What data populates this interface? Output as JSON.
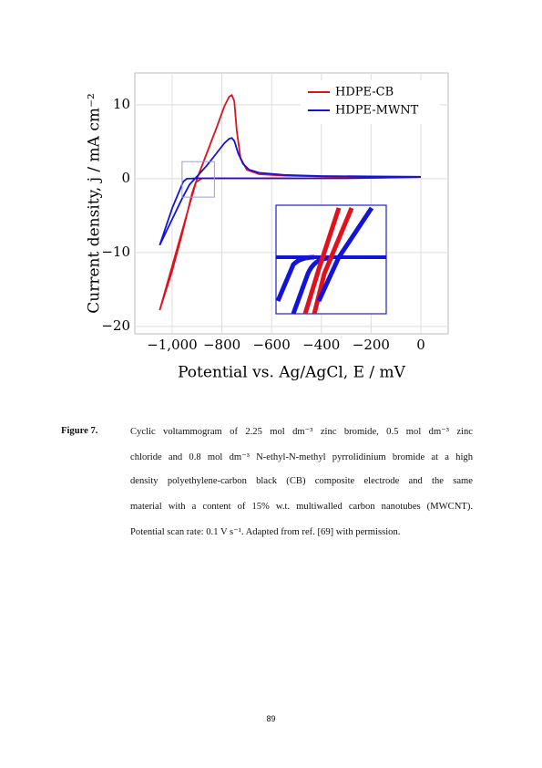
{
  "chart_data": {
    "type": "line",
    "xlabel": "Potential vs. Ag/AgCl, E / mV",
    "ylabel": "Current density, j / mA cm⁻²",
    "xlim": [
      -1150,
      110
    ],
    "ylim": [
      -21,
      14.3
    ],
    "xticks": [
      {
        "value": -1000,
        "label": "−1,000"
      },
      {
        "value": -800,
        "label": "−800"
      },
      {
        "value": -600,
        "label": "−600"
      },
      {
        "value": -400,
        "label": "−400"
      },
      {
        "value": -200,
        "label": "−200"
      },
      0
    ],
    "yticks": [
      {
        "value": -20,
        "label": "−20"
      },
      {
        "value": -10,
        "label": "−10"
      },
      0,
      10
    ],
    "grid": true,
    "legend": "upper right",
    "series": [
      {
        "name": "HDPE-CB",
        "color": "#e0101c",
        "x": [
          -1050,
          -980,
          -930,
          -900,
          -860,
          -820,
          -790,
          -770,
          -760,
          -750,
          -740,
          -725,
          -700,
          -650,
          -550,
          -400,
          -200,
          0,
          -200,
          -500,
          -800,
          -880,
          -905,
          -920,
          -960,
          -1000,
          -1050
        ],
        "values": [
          -17.8,
          -9.5,
          -3.5,
          0,
          3.5,
          7,
          9.8,
          11.1,
          11.3,
          10.5,
          6.5,
          2.8,
          1.2,
          0.6,
          0.4,
          0.3,
          0.25,
          0.2,
          0.1,
          0.05,
          0.05,
          0.05,
          -0.5,
          -2,
          -7.5,
          -12.5,
          -17.8
        ]
      },
      {
        "name": "HDPE-MWNT",
        "color": "#1414d8",
        "x": [
          -1050,
          -1000,
          -960,
          -930,
          -900,
          -860,
          -820,
          -790,
          -770,
          -760,
          -750,
          -735,
          -715,
          -690,
          -650,
          -550,
          -400,
          -200,
          0,
          -300,
          -600,
          -900,
          -940,
          -955,
          -1000,
          -1050
        ],
        "values": [
          -9,
          -5.5,
          -2.7,
          -0.8,
          0.3,
          1.8,
          3.5,
          4.8,
          5.4,
          5.5,
          5.1,
          3.5,
          2,
          1.2,
          0.8,
          0.5,
          0.35,
          0.3,
          0.25,
          0.05,
          0.05,
          0.05,
          0,
          -0.4,
          -4,
          -9
        ]
      }
    ]
  },
  "caption": {
    "label": "Figure 7.",
    "lines": [
      "Cyclic voltammogram of 2.25 mol dm⁻³ zinc bromide, 0.5 mol dm⁻³ zinc",
      "chloride and 0.8 mol dm⁻³ N-ethyl-N-methyl pyrrolidinium bromide at a high",
      "density polyethylene-carbon black (CB) composite electrode and the same",
      "material with a content of 15% w.t. multiwalled carbon nanotubes (MWCNT).",
      "Potential scan rate: 0.1 V s⁻¹. Adapted from ref. [69] with permission."
    ]
  },
  "page_number": "89"
}
